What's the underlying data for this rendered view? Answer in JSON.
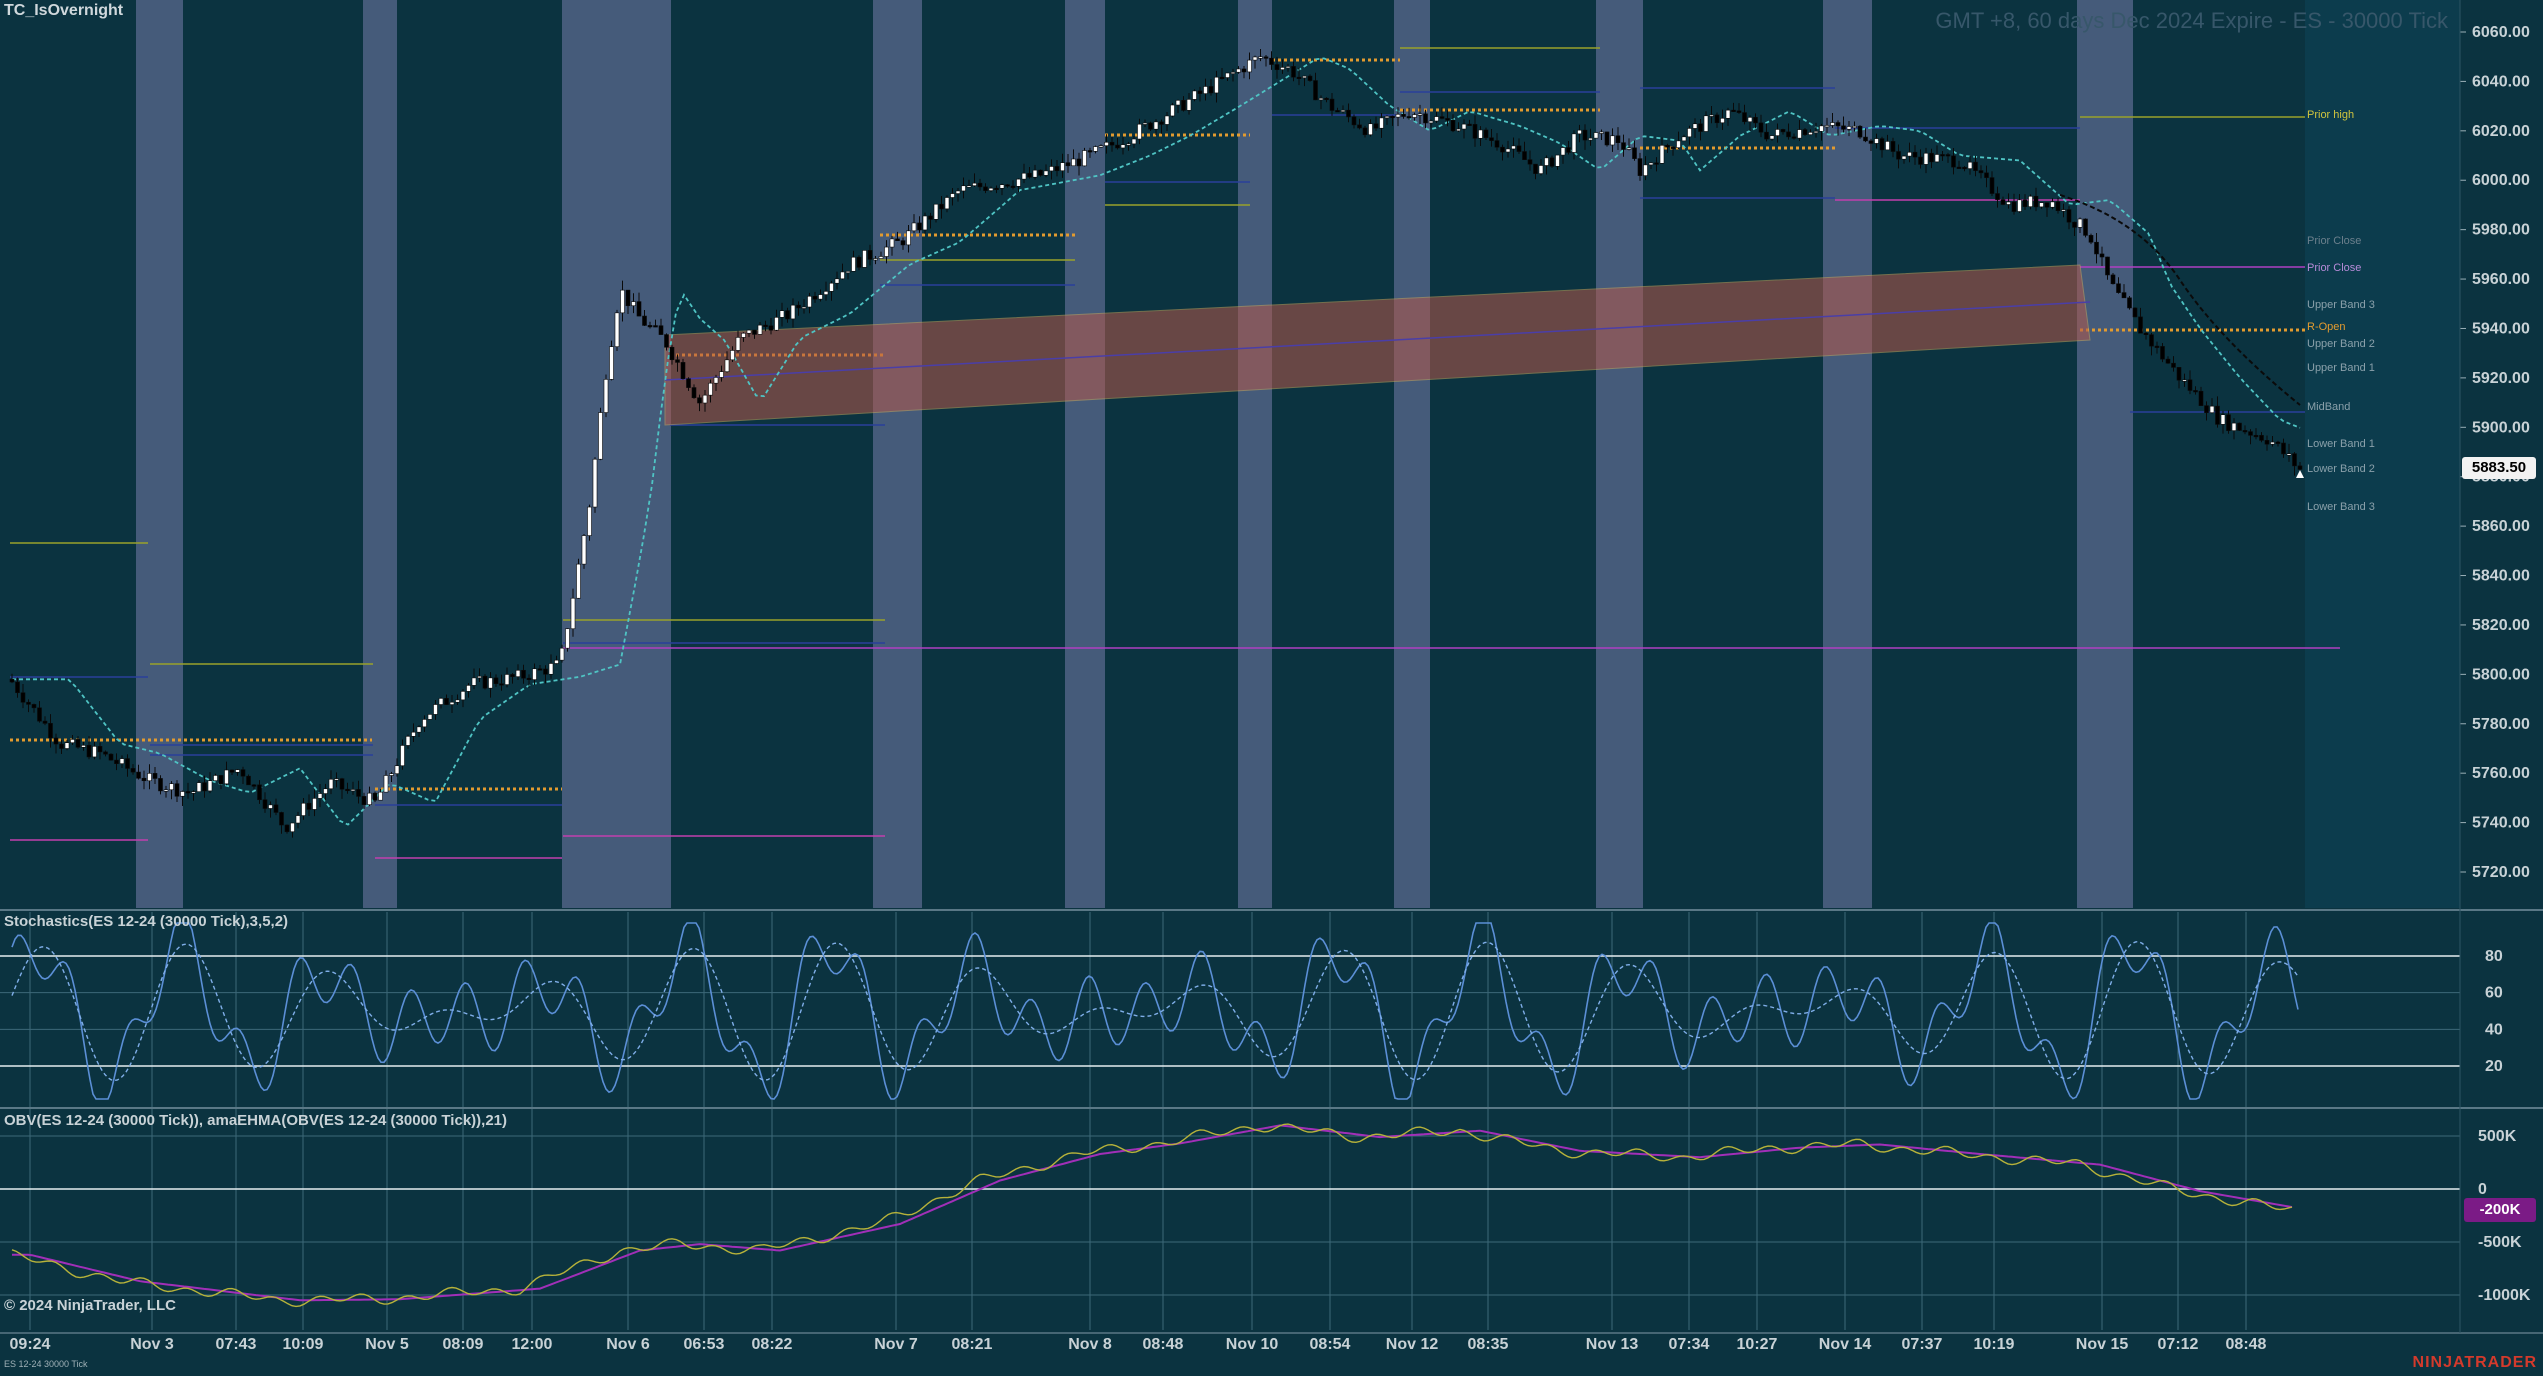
{
  "app": {
    "instrument_label": "TC_IsOvernight",
    "header_title": "GMT +8, 60 days  Dec 2024 Expire - ES - 30000 Tick",
    "copyright": "© 2024 NinjaTrader, LLC",
    "small_tag": "ES 12-24 30000 Tick",
    "brand": "NINJATRADER"
  },
  "colors": {
    "background": "#0b3340",
    "session_band": "#5a6a8e",
    "bull_candle": "#ffffff",
    "bear_candle": "#000000",
    "stoch_line": "#5b8fd6",
    "obv_line": "#b6b23a",
    "obv_ema": "#a12fb8",
    "vwap_band": "#b5584a",
    "last_price_tag": "#f2f2f2"
  },
  "price_panel": {
    "y_axis_labels": [
      "6060.00",
      "6040.00",
      "6020.00",
      "6000.00",
      "5980.00",
      "5960.00",
      "5940.00",
      "5920.00",
      "5900.00",
      "5880.00",
      "5860.00",
      "5840.00",
      "5820.00",
      "5800.00",
      "5780.00",
      "5760.00",
      "5740.00",
      "5720.00"
    ],
    "last_price": "5883.50",
    "level_labels": [
      "Prior high",
      "Prior Close",
      "R-Open",
      "Upper Band 3",
      "Upper Band 2",
      "Upper Band 1",
      "MidBand",
      "Lower Band 1",
      "Lower Band 2",
      "Lower Band 3"
    ]
  },
  "stochastics_panel": {
    "title": "Stochastics(ES 12-24 (30000 Tick),3,5,2)",
    "y_axis_labels": [
      "80",
      "60",
      "40",
      "20"
    ]
  },
  "obv_panel": {
    "title": "OBV(ES 12-24 (30000 Tick)), amaEHMA(OBV(ES 12-24 (30000 Tick)),21)",
    "y_axis_labels": [
      "500K",
      "0",
      "-500K",
      "-1000K"
    ],
    "last_value": "-200K"
  },
  "x_axis_labels": [
    "09:24",
    "Nov 3",
    "07:43",
    "10:09",
    "Nov 5",
    "08:09",
    "12:00",
    "Nov 6",
    "06:53",
    "08:22",
    "Nov 7",
    "08:21",
    "Nov 8",
    "08:48",
    "Nov 10",
    "08:54",
    "Nov 12",
    "08:35",
    "Nov 13",
    "07:34",
    "10:27",
    "Nov 14",
    "07:37",
    "10:19",
    "Nov 15",
    "07:12",
    "08:48"
  ]
}
